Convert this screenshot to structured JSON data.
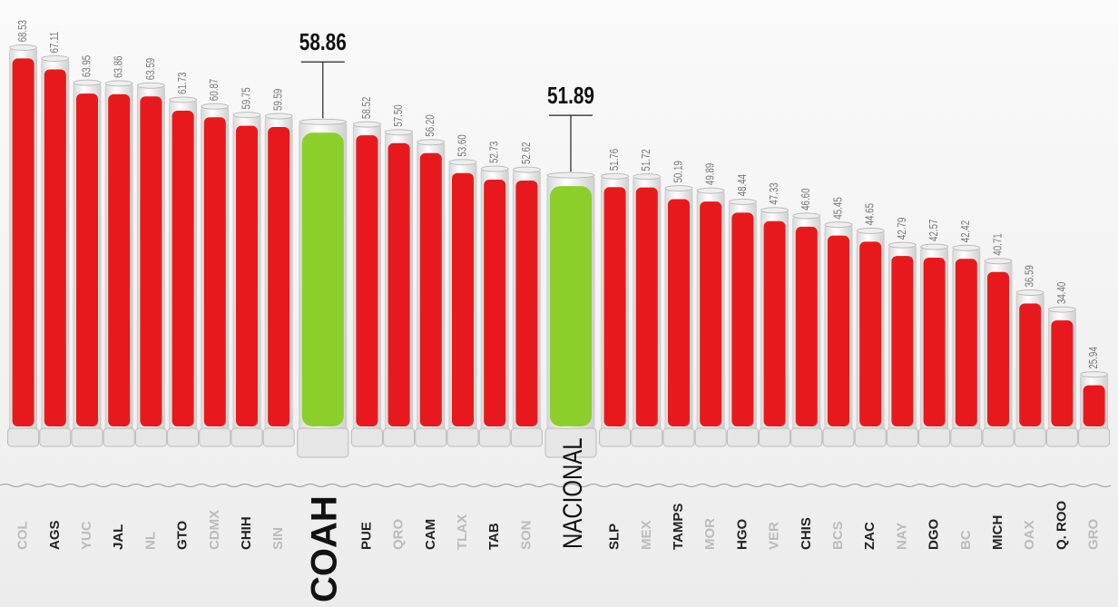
{
  "chart_data": {
    "type": "bar",
    "categories": [
      "COL",
      "AGS",
      "YUC",
      "JAL",
      "NL",
      "GTO",
      "CDMX",
      "CHIH",
      "SIN",
      "COAH",
      "PUE",
      "QRO",
      "CAM",
      "TLAX",
      "TAB",
      "SON",
      "NACIONAL",
      "SLP",
      "MEX",
      "TAMPS",
      "MOR",
      "HGO",
      "VER",
      "CHIS",
      "BCS",
      "ZAC",
      "NAY",
      "DGO",
      "BC",
      "MICH",
      "OAX",
      "Q. ROO",
      "GRO"
    ],
    "values": [
      68.53,
      67.11,
      63.95,
      63.86,
      63.59,
      61.73,
      60.87,
      59.75,
      59.59,
      58.86,
      58.52,
      57.5,
      56.2,
      53.6,
      52.73,
      52.62,
      51.89,
      51.76,
      51.72,
      50.19,
      49.89,
      48.44,
      47.33,
      46.6,
      45.45,
      44.65,
      42.79,
      42.57,
      42.42,
      40.71,
      36.59,
      34.4,
      25.94
    ],
    "value_labels": [
      "68.53",
      "67.11",
      "63.95",
      "63.86",
      "63.59",
      "61.73",
      "60.87",
      "59.75",
      "59.59",
      "58.86",
      "58.52",
      "57.50",
      "56.20",
      "53.60",
      "52.73",
      "52.62",
      "51.89",
      "51.76",
      "51.72",
      "50.19",
      "49.89",
      "48.44",
      "47.33",
      "46.60",
      "45.45",
      "44.65",
      "42.79",
      "42.57",
      "42.42",
      "40.71",
      "36.59",
      "34.40",
      "25.94"
    ],
    "colors": [
      "#e8191c",
      "#e8191c",
      "#e8191c",
      "#e8191c",
      "#e8191c",
      "#e8191c",
      "#e8191c",
      "#e8191c",
      "#e8191c",
      "#8ccf2a",
      "#e8191c",
      "#e8191c",
      "#e8191c",
      "#e8191c",
      "#e8191c",
      "#e8191c",
      "#8ccf2a",
      "#e8191c",
      "#e8191c",
      "#e8191c",
      "#e8191c",
      "#e8191c",
      "#e8191c",
      "#e8191c",
      "#e8191c",
      "#e8191c",
      "#e8191c",
      "#e8191c",
      "#e8191c",
      "#e8191c",
      "#e8191c",
      "#e8191c",
      "#e8191c"
    ],
    "ylim": [
      0,
      70
    ]
  }
}
